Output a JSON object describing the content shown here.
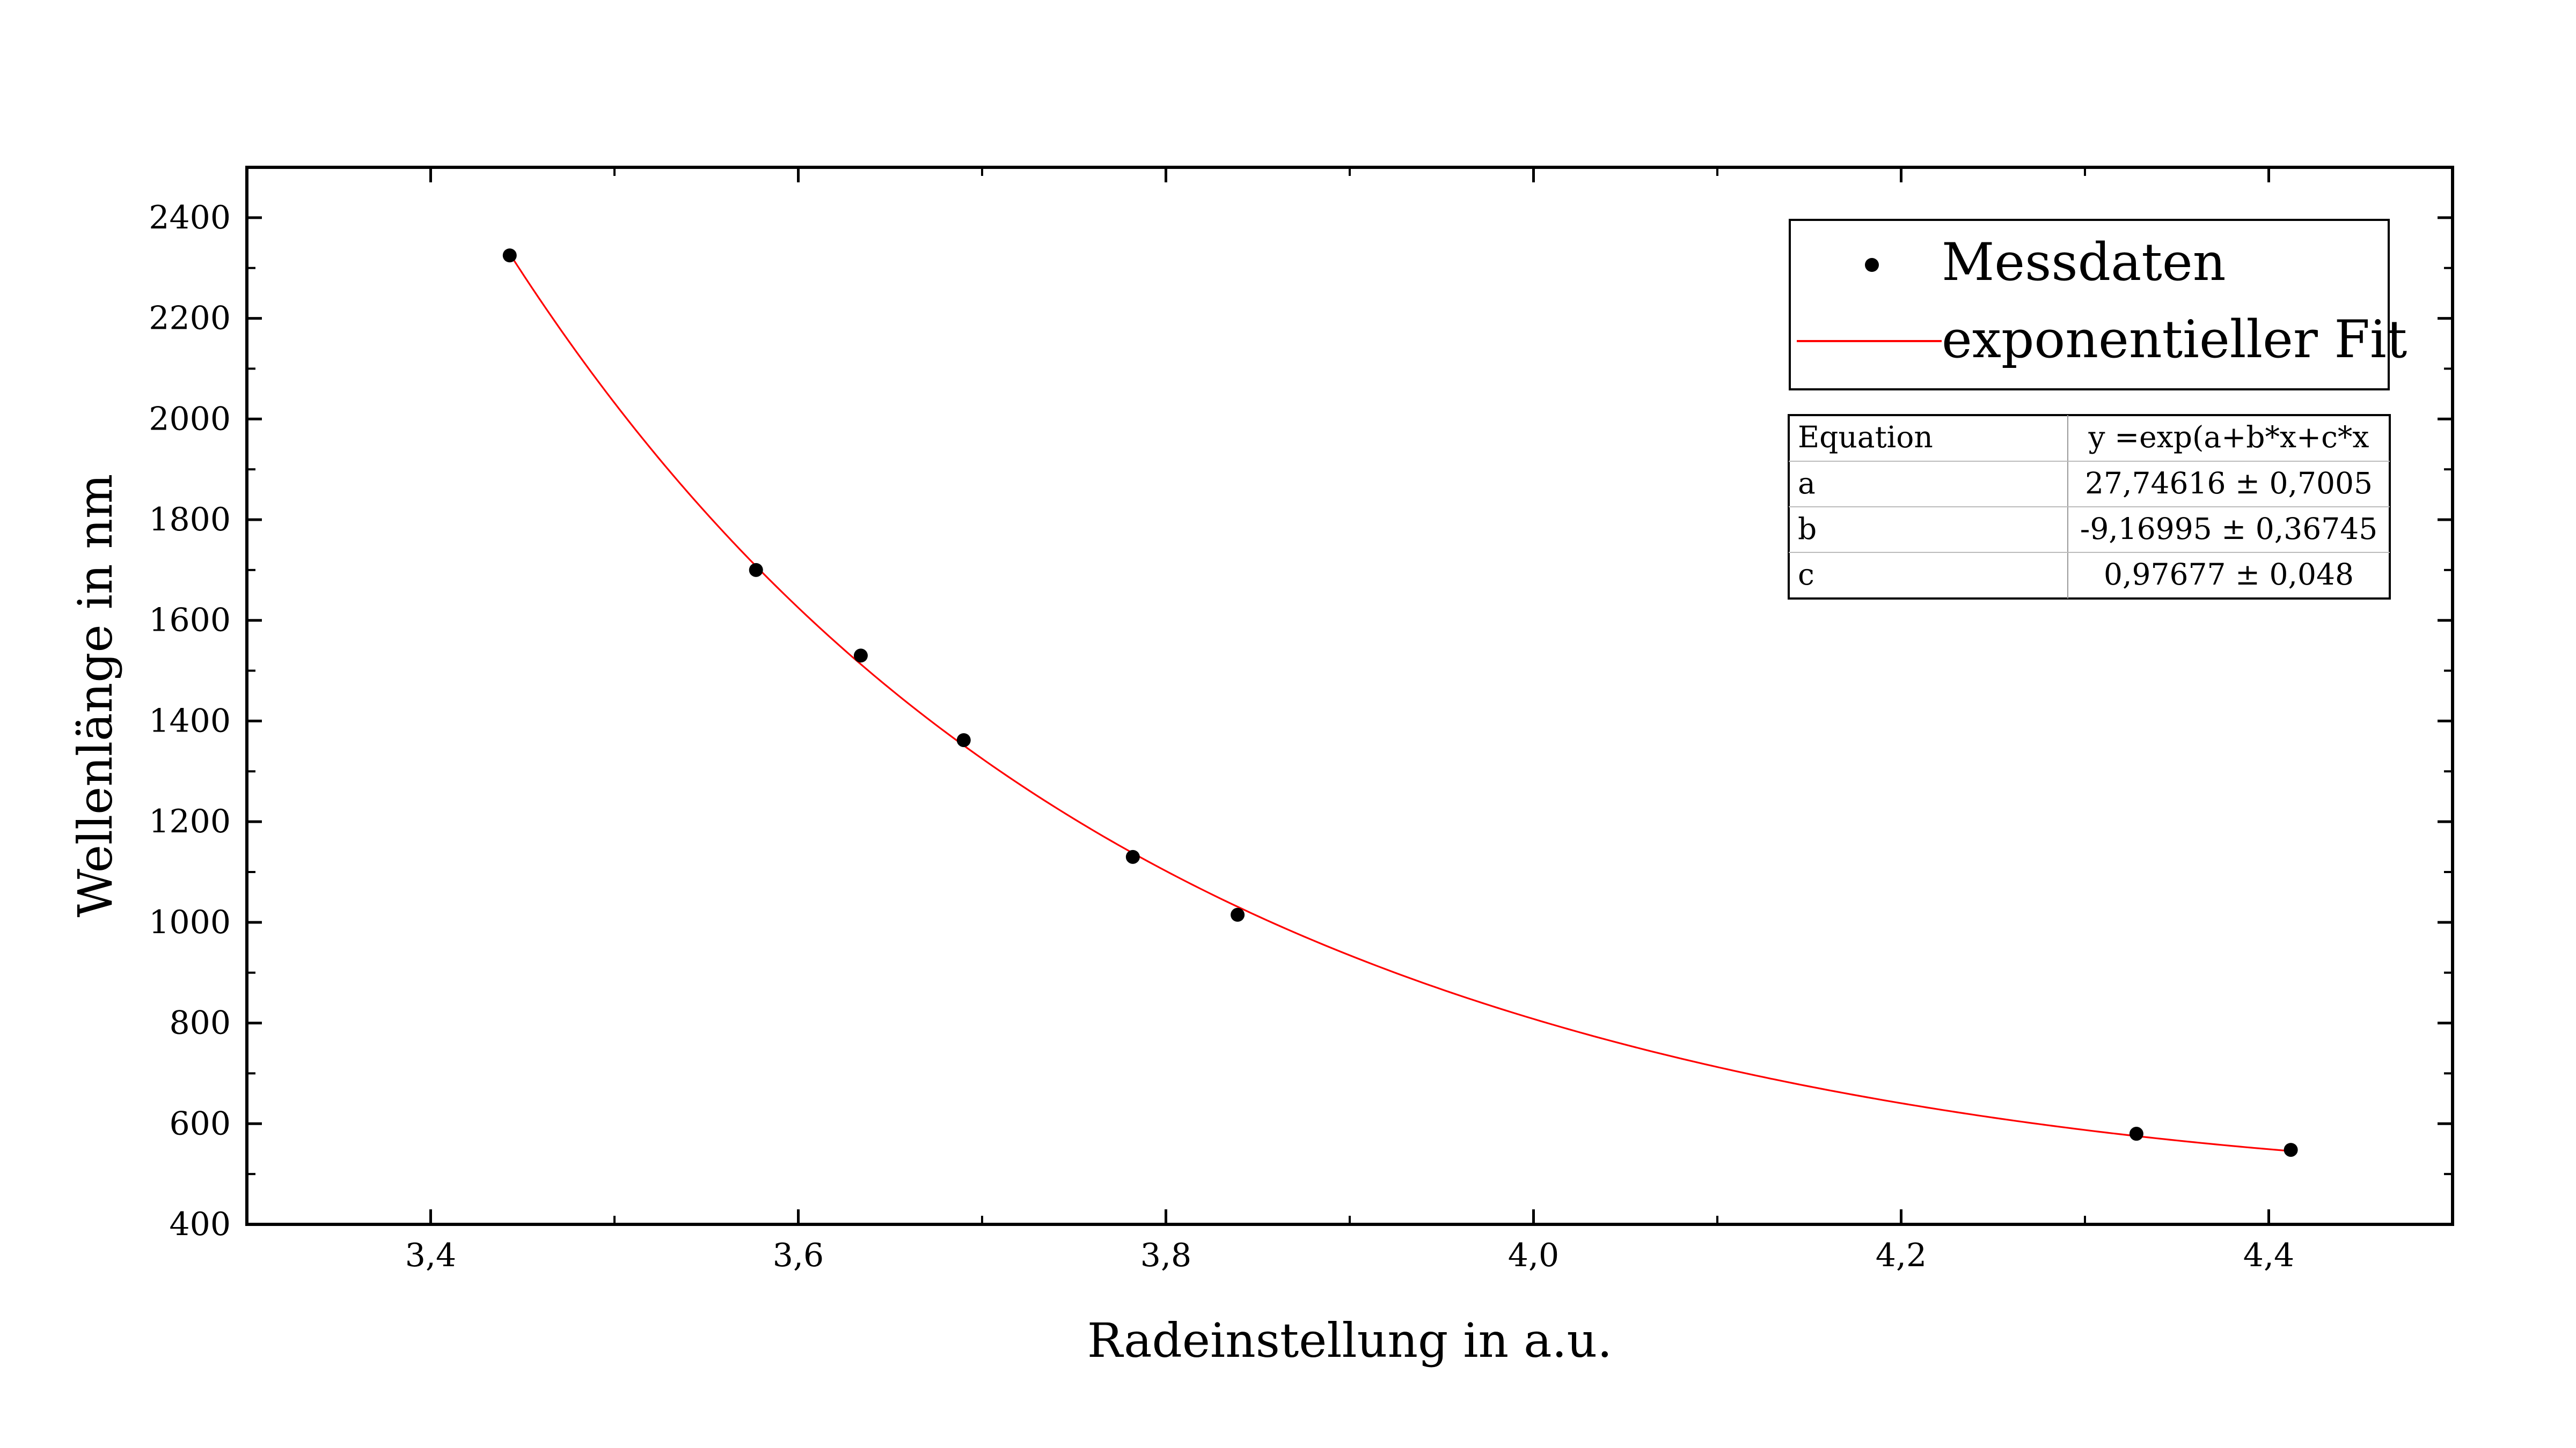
{
  "chart_data": {
    "type": "scatter",
    "xlabel": "Radeinstellung in a.u.",
    "ylabel": "Wellenlänge in nm",
    "xlim": [
      3.3,
      4.5
    ],
    "ylim": [
      400,
      2500
    ],
    "x_ticks": [
      {
        "value": 3.4,
        "label": "3,4"
      },
      {
        "value": 3.6,
        "label": "3,6"
      },
      {
        "value": 3.8,
        "label": "3,8"
      },
      {
        "value": 4.0,
        "label": "4,0"
      },
      {
        "value": 4.2,
        "label": "4,2"
      },
      {
        "value": 4.4,
        "label": "4,4"
      }
    ],
    "x_minor_ticks": [
      3.3,
      3.5,
      3.7,
      3.9,
      4.1,
      4.3,
      4.5
    ],
    "y_ticks": [
      {
        "value": 400,
        "label": "400"
      },
      {
        "value": 600,
        "label": "600"
      },
      {
        "value": 800,
        "label": "800"
      },
      {
        "value": 1000,
        "label": "1000"
      },
      {
        "value": 1200,
        "label": "1200"
      },
      {
        "value": 1400,
        "label": "1400"
      },
      {
        "value": 1600,
        "label": "1600"
      },
      {
        "value": 1800,
        "label": "1800"
      },
      {
        "value": 2000,
        "label": "2000"
      },
      {
        "value": 2200,
        "label": "2200"
      },
      {
        "value": 2400,
        "label": "2400"
      }
    ],
    "y_minor_ticks": [
      500,
      700,
      900,
      1100,
      1300,
      1500,
      1700,
      1900,
      2100,
      2300
    ],
    "grid": false,
    "series": [
      {
        "name": "Messdaten",
        "kind": "scatter",
        "color": "#000000",
        "x": [
          3.443,
          3.577,
          3.634,
          3.69,
          3.782,
          3.839,
          4.328,
          4.412
        ],
        "y": [
          2325,
          1700,
          1530,
          1362,
          1130,
          1015,
          580,
          548
        ]
      },
      {
        "name": "exponentieller Fit",
        "kind": "line",
        "color": "#ff0000",
        "function": "exp(a+b*x+c*x^2)",
        "x_range": [
          3.443,
          4.412
        ],
        "params": {
          "a": 27.74616,
          "b": -9.16995,
          "c": 0.97677
        }
      }
    ],
    "legend": {
      "position": "top-right",
      "entries": [
        "Messdaten",
        "exponentieller Fit"
      ]
    },
    "fit_table": {
      "rows": [
        [
          "Equation",
          "y =exp(a+b*x+c*x"
        ],
        [
          "a",
          "27,74616 ± 0,7005"
        ],
        [
          "b",
          "-9,16995 ± 0,36745"
        ],
        [
          "c",
          "0,97677 ± 0,048"
        ]
      ]
    }
  }
}
